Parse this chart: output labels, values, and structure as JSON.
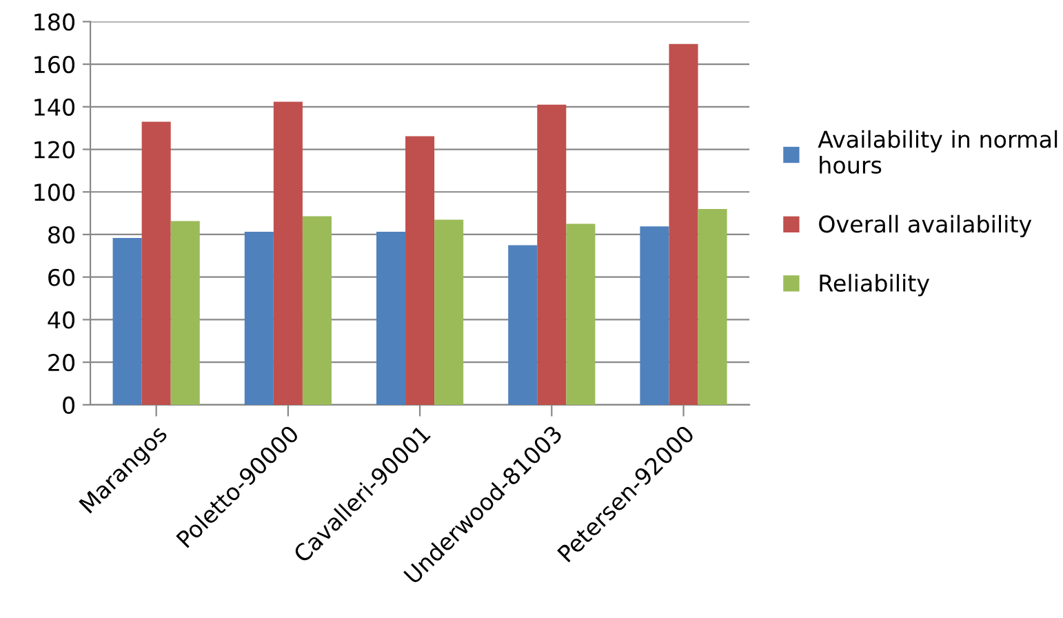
{
  "chart_data": {
    "type": "bar",
    "categories": [
      "Marangos",
      "Poletto-90000",
      "Cavalleri-90001",
      "Underwood-81003",
      "Petersen-92000"
    ],
    "series": [
      {
        "name": "Availability in normal\nhours",
        "color": "#4f81bd",
        "values": [
          78.4,
          81.3,
          81.3,
          75,
          83.8
        ]
      },
      {
        "name": "Overall availability",
        "color": "#c0504d",
        "values": [
          133,
          142.4,
          126.2,
          141,
          169.5
        ]
      },
      {
        "name": "Reliability",
        "color": "#9bbb59",
        "values": [
          86.3,
          88.6,
          87,
          85,
          92
        ]
      }
    ],
    "ylim": [
      0,
      180
    ],
    "yticks": [
      0,
      20,
      40,
      60,
      80,
      100,
      120,
      140,
      160,
      180
    ],
    "grid": "y",
    "legend": "right"
  }
}
